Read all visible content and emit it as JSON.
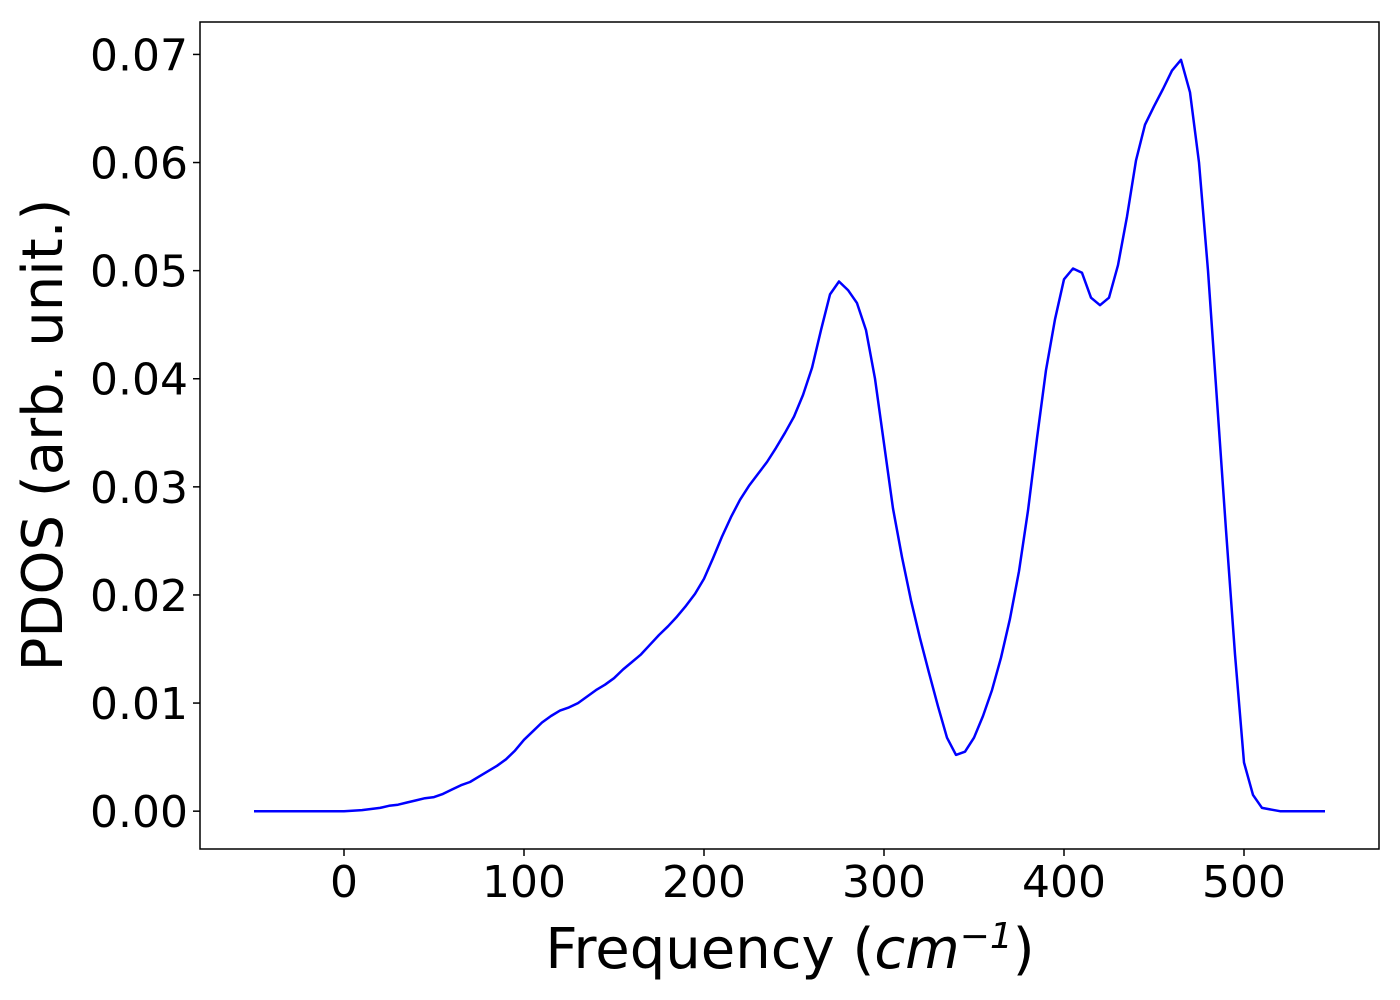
{
  "chart_data": {
    "type": "line",
    "title": "",
    "xlabel": "Frequency",
    "xlabel_unit_base": "cm",
    "xlabel_unit_exponent": "−1",
    "ylabel": "PDOS (arb. unit.)",
    "xlim": [
      -80,
      575
    ],
    "ylim": [
      -0.0035,
      0.073
    ],
    "xticks": [
      0,
      100,
      200,
      300,
      400,
      500
    ],
    "xtick_labels": [
      "0",
      "100",
      "200",
      "300",
      "400",
      "500"
    ],
    "yticks": [
      0.0,
      0.01,
      0.02,
      0.03,
      0.04,
      0.05,
      0.06,
      0.07
    ],
    "ytick_labels": [
      "0.00",
      "0.01",
      "0.02",
      "0.03",
      "0.04",
      "0.05",
      "0.06",
      "0.07"
    ],
    "grid": false,
    "legend": "none",
    "line_color": "#0000ff",
    "series": [
      {
        "x": [
          -50,
          -20,
          0,
          10,
          15,
          20,
          25,
          30,
          35,
          40,
          45,
          50,
          55,
          60,
          65,
          70,
          75,
          80,
          85,
          90,
          95,
          100,
          105,
          110,
          115,
          120,
          125,
          130,
          135,
          140,
          145,
          150,
          155,
          160,
          165,
          170,
          175,
          180,
          185,
          190,
          195,
          200,
          205,
          210,
          215,
          220,
          225,
          230,
          235,
          240,
          245,
          250,
          255,
          260,
          265,
          270,
          275,
          280,
          285,
          290,
          295,
          300,
          305,
          310,
          315,
          320,
          325,
          330,
          335,
          340,
          345,
          350,
          355,
          360,
          365,
          370,
          375,
          380,
          385,
          390,
          395,
          400,
          405,
          410,
          415,
          420,
          425,
          430,
          435,
          440,
          445,
          450,
          455,
          460,
          465,
          470,
          475,
          480,
          485,
          490,
          495,
          500,
          505,
          510,
          520,
          545
        ],
        "y": [
          0.0,
          0.0,
          0.0,
          0.0001,
          0.0002,
          0.0003,
          0.0005,
          0.0006,
          0.0008,
          0.001,
          0.0012,
          0.0013,
          0.0016,
          0.002,
          0.0024,
          0.0027,
          0.0032,
          0.0037,
          0.0042,
          0.0048,
          0.0056,
          0.0066,
          0.0074,
          0.0082,
          0.0088,
          0.0093,
          0.0096,
          0.01,
          0.0106,
          0.0112,
          0.0117,
          0.0123,
          0.0131,
          0.0138,
          0.0145,
          0.0154,
          0.0163,
          0.0171,
          0.018,
          0.019,
          0.0201,
          0.0215,
          0.0234,
          0.0254,
          0.0272,
          0.0288,
          0.0301,
          0.0312,
          0.0323,
          0.0336,
          0.035,
          0.0365,
          0.0385,
          0.041,
          0.0445,
          0.0478,
          0.049,
          0.0482,
          0.047,
          0.0445,
          0.04,
          0.034,
          0.028,
          0.0235,
          0.0195,
          0.016,
          0.0128,
          0.0097,
          0.0068,
          0.0052,
          0.0055,
          0.0068,
          0.0088,
          0.0112,
          0.0142,
          0.0178,
          0.0222,
          0.0278,
          0.0345,
          0.0408,
          0.0455,
          0.0492,
          0.0502,
          0.0498,
          0.0475,
          0.0468,
          0.0475,
          0.0505,
          0.055,
          0.0602,
          0.0635,
          0.0652,
          0.0668,
          0.0685,
          0.0695,
          0.0665,
          0.06,
          0.05,
          0.038,
          0.026,
          0.0145,
          0.0045,
          0.0015,
          0.0003,
          0.0,
          0.0
        ]
      }
    ]
  }
}
